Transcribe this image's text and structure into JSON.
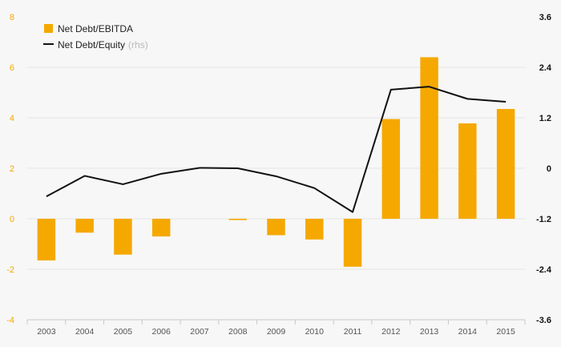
{
  "chart_data": {
    "type": "bar+line",
    "categories": [
      "2003",
      "2004",
      "2005",
      "2006",
      "2007",
      "2008",
      "2009",
      "2010",
      "2011",
      "2012",
      "2013",
      "2014",
      "2015"
    ],
    "series": [
      {
        "name": "Net Debt/EBITDA",
        "type": "bar",
        "axis": "left",
        "color": "#f5a800",
        "values": [
          -1.65,
          -0.55,
          -1.42,
          -0.7,
          0.0,
          -0.05,
          -0.65,
          -0.82,
          -1.9,
          3.95,
          6.4,
          3.78,
          4.35
        ]
      },
      {
        "name": "Net Debt/Equity",
        "name_suffix": "(rhs)",
        "type": "line",
        "axis": "right",
        "color": "#111111",
        "values": [
          -0.67,
          -0.18,
          -0.38,
          -0.13,
          0.01,
          0.0,
          -0.19,
          -0.47,
          -1.04,
          1.87,
          1.94,
          1.65,
          1.58
        ]
      }
    ],
    "y_left": {
      "range": [
        -4,
        8
      ],
      "ticks": [
        "-4",
        "-2",
        "0",
        "2",
        "4",
        "6",
        "8"
      ],
      "tick_color": "#f5a800"
    },
    "y_right": {
      "range": [
        -3.6,
        3.6
      ],
      "ticks": [
        "-3.6",
        "-2.4",
        "-1.2",
        "0",
        "1.2",
        "2.4",
        "3.6"
      ],
      "tick_color": "#111111"
    },
    "grid": true,
    "legend_position": "top-left"
  }
}
